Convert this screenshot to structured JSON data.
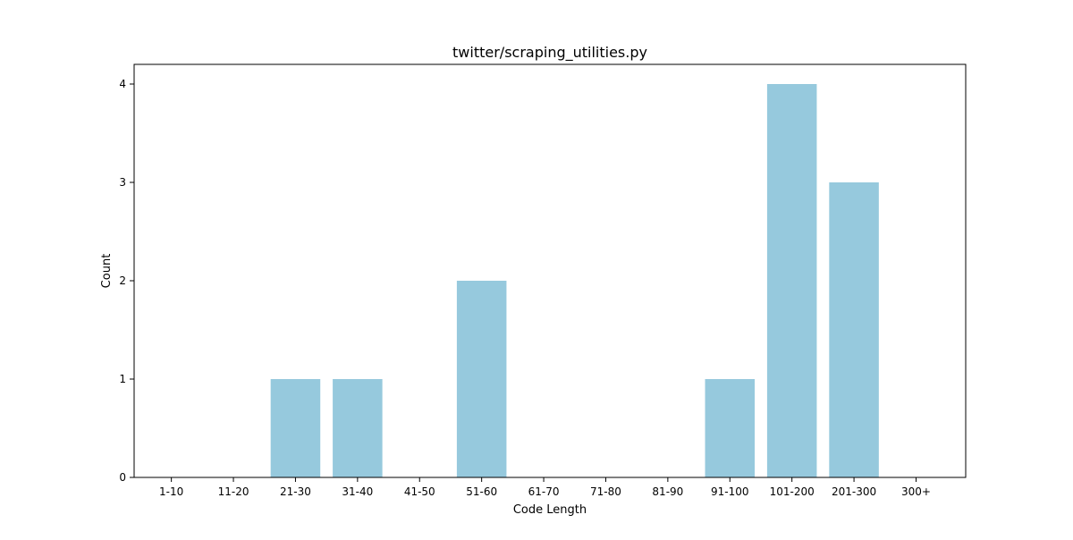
{
  "chart_data": {
    "type": "bar",
    "title": "twitter/scraping_utilities.py",
    "xlabel": "Code Length",
    "ylabel": "Count",
    "categories": [
      "1-10",
      "11-20",
      "21-30",
      "31-40",
      "41-50",
      "51-60",
      "61-70",
      "71-80",
      "81-90",
      "91-100",
      "101-200",
      "201-300",
      "300+"
    ],
    "values": [
      0,
      0,
      1,
      1,
      0,
      2,
      0,
      0,
      0,
      1,
      4,
      3,
      0
    ],
    "ylim": [
      0,
      4.2
    ],
    "yticks": [
      0,
      1,
      2,
      3,
      4
    ],
    "bar_color": "#96c9dd",
    "grid": false,
    "legend": "none"
  }
}
